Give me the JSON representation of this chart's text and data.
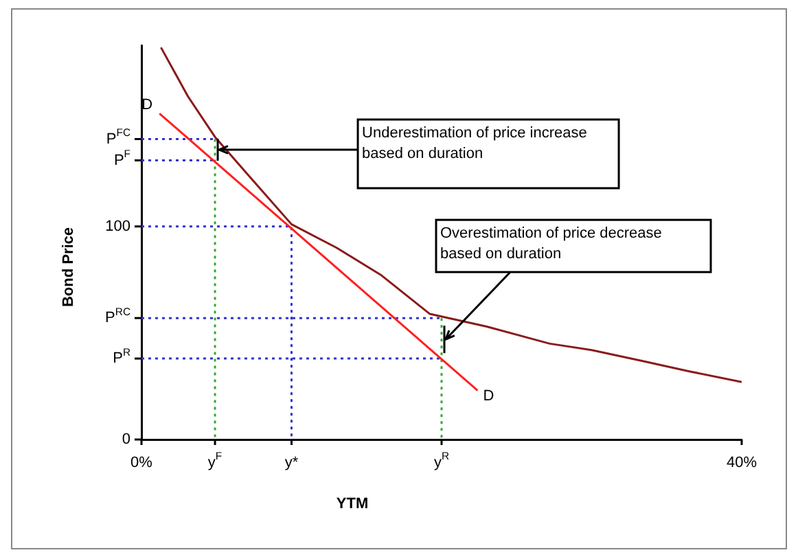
{
  "chart_data": {
    "type": "line",
    "xlabel": "YTM",
    "ylabel": "Bond Price",
    "xlim": [
      0,
      40
    ],
    "ylim": [
      0,
      185
    ],
    "xticks": [
      {
        "value": 0,
        "label": "0%"
      },
      {
        "value": 4.9,
        "label": "y$^{F}$"
      },
      {
        "value": 10,
        "label": "y*"
      },
      {
        "value": 20,
        "label": "y$^{R}$"
      },
      {
        "value": 40,
        "label": "40%"
      }
    ],
    "yticks": [
      0,
      {
        "value": 38,
        "label": "P$^{R}$"
      },
      {
        "value": 57,
        "label": "P$^{RC}$"
      },
      100,
      {
        "value": 131,
        "label": "P$^{F}$"
      },
      {
        "value": 141,
        "label": "P$^{FC}$"
      }
    ],
    "grid": false,
    "legend": false,
    "marker": "none",
    "series": [
      {
        "color": "#8b1a1a",
        "line_style": "solid",
        "x": [
          1.3,
          3.1,
          4.9,
          7.5,
          10,
          13,
          16,
          19.2,
          23,
          27.2,
          30,
          33.3,
          36.5,
          40
        ],
        "values": [
          184,
          161,
          142,
          121,
          101,
          90,
          77,
          59,
          53,
          45,
          42,
          37,
          32,
          27
        ]
      },
      {
        "color": "#ff2020",
        "line_style": "solid",
        "x": [
          1.2,
          22.4
        ],
        "values": [
          153,
          23
        ]
      },
      {
        "color": "#3333cc",
        "line_style": "dotted",
        "x": [
          0,
          4.9
        ],
        "values": [
          141,
          141
        ]
      },
      {
        "color": "#3333cc",
        "line_style": "dotted",
        "x": [
          0,
          4.9
        ],
        "values": [
          131,
          131
        ]
      },
      {
        "color": "#3333cc",
        "line_style": "dotted",
        "x": [
          0,
          10,
          10
        ],
        "values": [
          100,
          100,
          0
        ]
      },
      {
        "color": "#3333cc",
        "line_style": "dotted",
        "x": [
          0,
          20
        ],
        "values": [
          57,
          57
        ]
      },
      {
        "color": "#3333cc",
        "line_style": "dotted",
        "x": [
          0,
          20
        ],
        "values": [
          38,
          38
        ]
      },
      {
        "color": "#33aa33",
        "line_style": "dotted",
        "x": [
          4.9,
          4.9
        ],
        "values": [
          141,
          0
        ]
      },
      {
        "color": "#33aa33",
        "line_style": "dotted",
        "x": [
          20,
          20
        ],
        "values": [
          57,
          0
        ]
      }
    ],
    "annotations": [
      {
        "text": "D",
        "x": 1.2,
        "y": 153
      },
      {
        "text": "D",
        "x": 22.4,
        "y": 23
      },
      {
        "text": "Underestimation of price increase based on duration",
        "x": 4.9,
        "y": 136
      },
      {
        "text": "Overestimation of price decrease based on duration",
        "x": 20,
        "y": 47
      }
    ]
  }
}
